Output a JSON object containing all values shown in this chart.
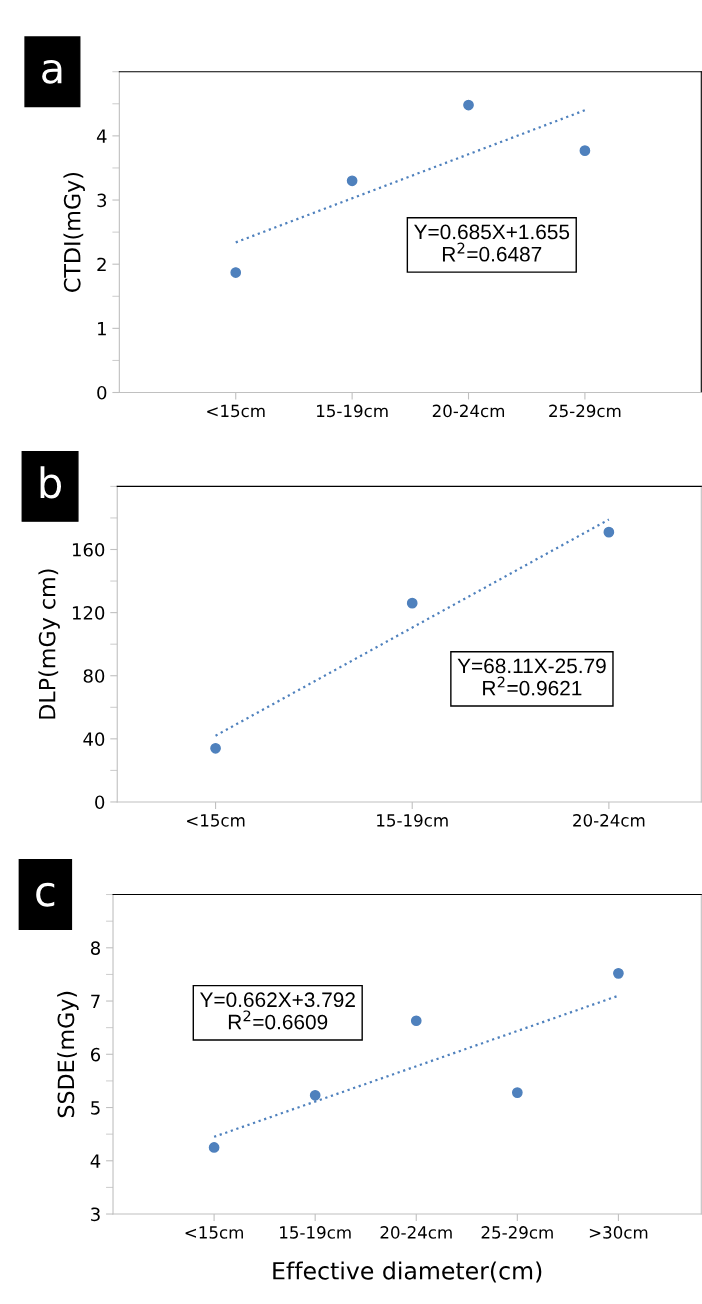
{
  "chart_data": [
    {
      "type": "scatter",
      "title": "a",
      "ylabel": "CTDI(mGy)",
      "categories": [
        "<15cm",
        "15-19cm",
        "20-24cm",
        "25-29cm"
      ],
      "ylim": [
        0,
        5
      ],
      "yticks": [
        0,
        1,
        2,
        3,
        4
      ],
      "marker": "circle",
      "grid": false,
      "legend": false,
      "series": [
        {
          "color": "#4f81bd",
          "values": [
            1.87,
            3.3,
            4.48,
            3.77
          ]
        },
        {
          "type": "line",
          "color": "#4f81bd",
          "line_style": "dotted",
          "marker": "none",
          "x": [
            "<15cm",
            "25-29cm"
          ],
          "values": [
            2.34,
            4.4
          ]
        }
      ],
      "annotations": [
        "Y=0.685X+1.655\nR$^{2}$=0.6487"
      ]
    },
    {
      "type": "scatter",
      "title": "b",
      "ylabel": "DLP(mGy cm)",
      "categories": [
        "<15cm",
        "15-19cm",
        "20-24cm"
      ],
      "ylim": [
        0,
        200
      ],
      "yticks": [
        0,
        40,
        80,
        120,
        160
      ],
      "marker": "circle",
      "grid": false,
      "legend": false,
      "series": [
        {
          "color": "#4f81bd",
          "values": [
            34,
            126,
            171
          ]
        },
        {
          "type": "line",
          "color": "#4f81bd",
          "line_style": "dotted",
          "marker": "none",
          "x": [
            "<15cm",
            "20-24cm"
          ],
          "values": [
            42,
            179
          ]
        }
      ],
      "annotations": [
        "Y=68.11X-25.79\nR$^{2}$=0.9621"
      ]
    },
    {
      "type": "scatter",
      "title": "c",
      "ylabel": "SSDE(mGy)",
      "xlabel": "Effective diameter(cm)",
      "categories": [
        "<15cm",
        "15-19cm",
        "20-24cm",
        "25-29cm",
        ">30cm"
      ],
      "ylim": [
        3,
        9
      ],
      "yticks": [
        3,
        4,
        5,
        6,
        7,
        8
      ],
      "marker": "circle",
      "grid": false,
      "legend": false,
      "series": [
        {
          "color": "#4f81bd",
          "values": [
            4.25,
            5.23,
            6.63,
            5.28,
            7.52
          ]
        },
        {
          "type": "line",
          "color": "#4f81bd",
          "line_style": "dotted",
          "marker": "none",
          "x": [
            "<15cm",
            ">30cm"
          ],
          "values": [
            4.45,
            7.1
          ]
        }
      ],
      "annotations": [
        "Y=0.662X+3.792\nR$^{2}$=0.6609"
      ]
    }
  ]
}
